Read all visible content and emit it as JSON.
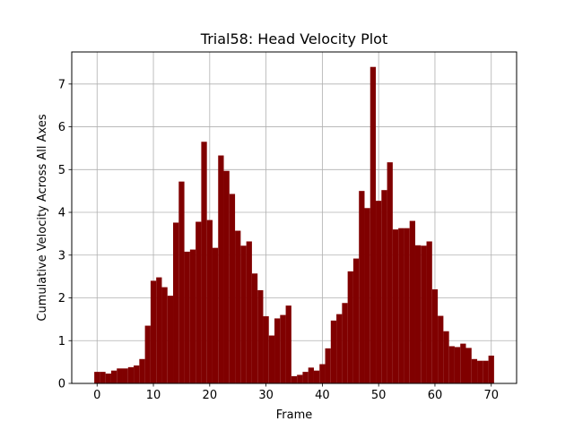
{
  "chart_data": {
    "type": "bar",
    "title": "Trial58: Head Velocity Plot",
    "xlabel": "Frame",
    "ylabel": "Cumulative Velocity Across All Axes",
    "xlim": [
      -4.5,
      74.5
    ],
    "ylim": [
      0,
      7.75
    ],
    "xticks": [
      0,
      10,
      20,
      30,
      40,
      50,
      60,
      70
    ],
    "yticks": [
      0,
      1,
      2,
      3,
      4,
      5,
      6,
      7
    ],
    "grid": true,
    "bar_color": "#800000",
    "x": [
      0,
      1,
      2,
      3,
      4,
      5,
      6,
      7,
      8,
      9,
      10,
      11,
      12,
      13,
      14,
      15,
      16,
      17,
      18,
      19,
      20,
      21,
      22,
      23,
      24,
      25,
      26,
      27,
      28,
      29,
      30,
      31,
      32,
      33,
      34,
      35,
      36,
      37,
      38,
      39,
      40,
      41,
      42,
      43,
      44,
      45,
      46,
      47,
      48,
      49,
      50,
      51,
      52,
      53,
      54,
      55,
      56,
      57,
      58,
      59,
      60,
      61,
      62,
      63,
      64,
      65,
      66,
      67,
      68,
      69,
      70
    ],
    "values": [
      0.27,
      0.27,
      0.23,
      0.3,
      0.35,
      0.35,
      0.38,
      0.42,
      0.57,
      1.35,
      2.4,
      2.48,
      2.25,
      2.05,
      3.76,
      4.72,
      3.08,
      3.13,
      3.78,
      5.65,
      3.82,
      3.17,
      5.33,
      4.97,
      4.43,
      3.57,
      3.22,
      3.32,
      2.57,
      2.18,
      1.57,
      1.12,
      1.52,
      1.6,
      1.82,
      0.17,
      0.2,
      0.27,
      0.37,
      0.3,
      0.45,
      0.82,
      1.47,
      1.62,
      1.88,
      2.62,
      2.92,
      4.5,
      4.1,
      7.4,
      4.27,
      4.52,
      5.17,
      3.6,
      3.63,
      3.63,
      3.8,
      3.23,
      3.22,
      3.32,
      2.2,
      1.58,
      1.22,
      0.87,
      0.85,
      0.93,
      0.83,
      0.57,
      0.53,
      0.53,
      0.65
    ]
  }
}
